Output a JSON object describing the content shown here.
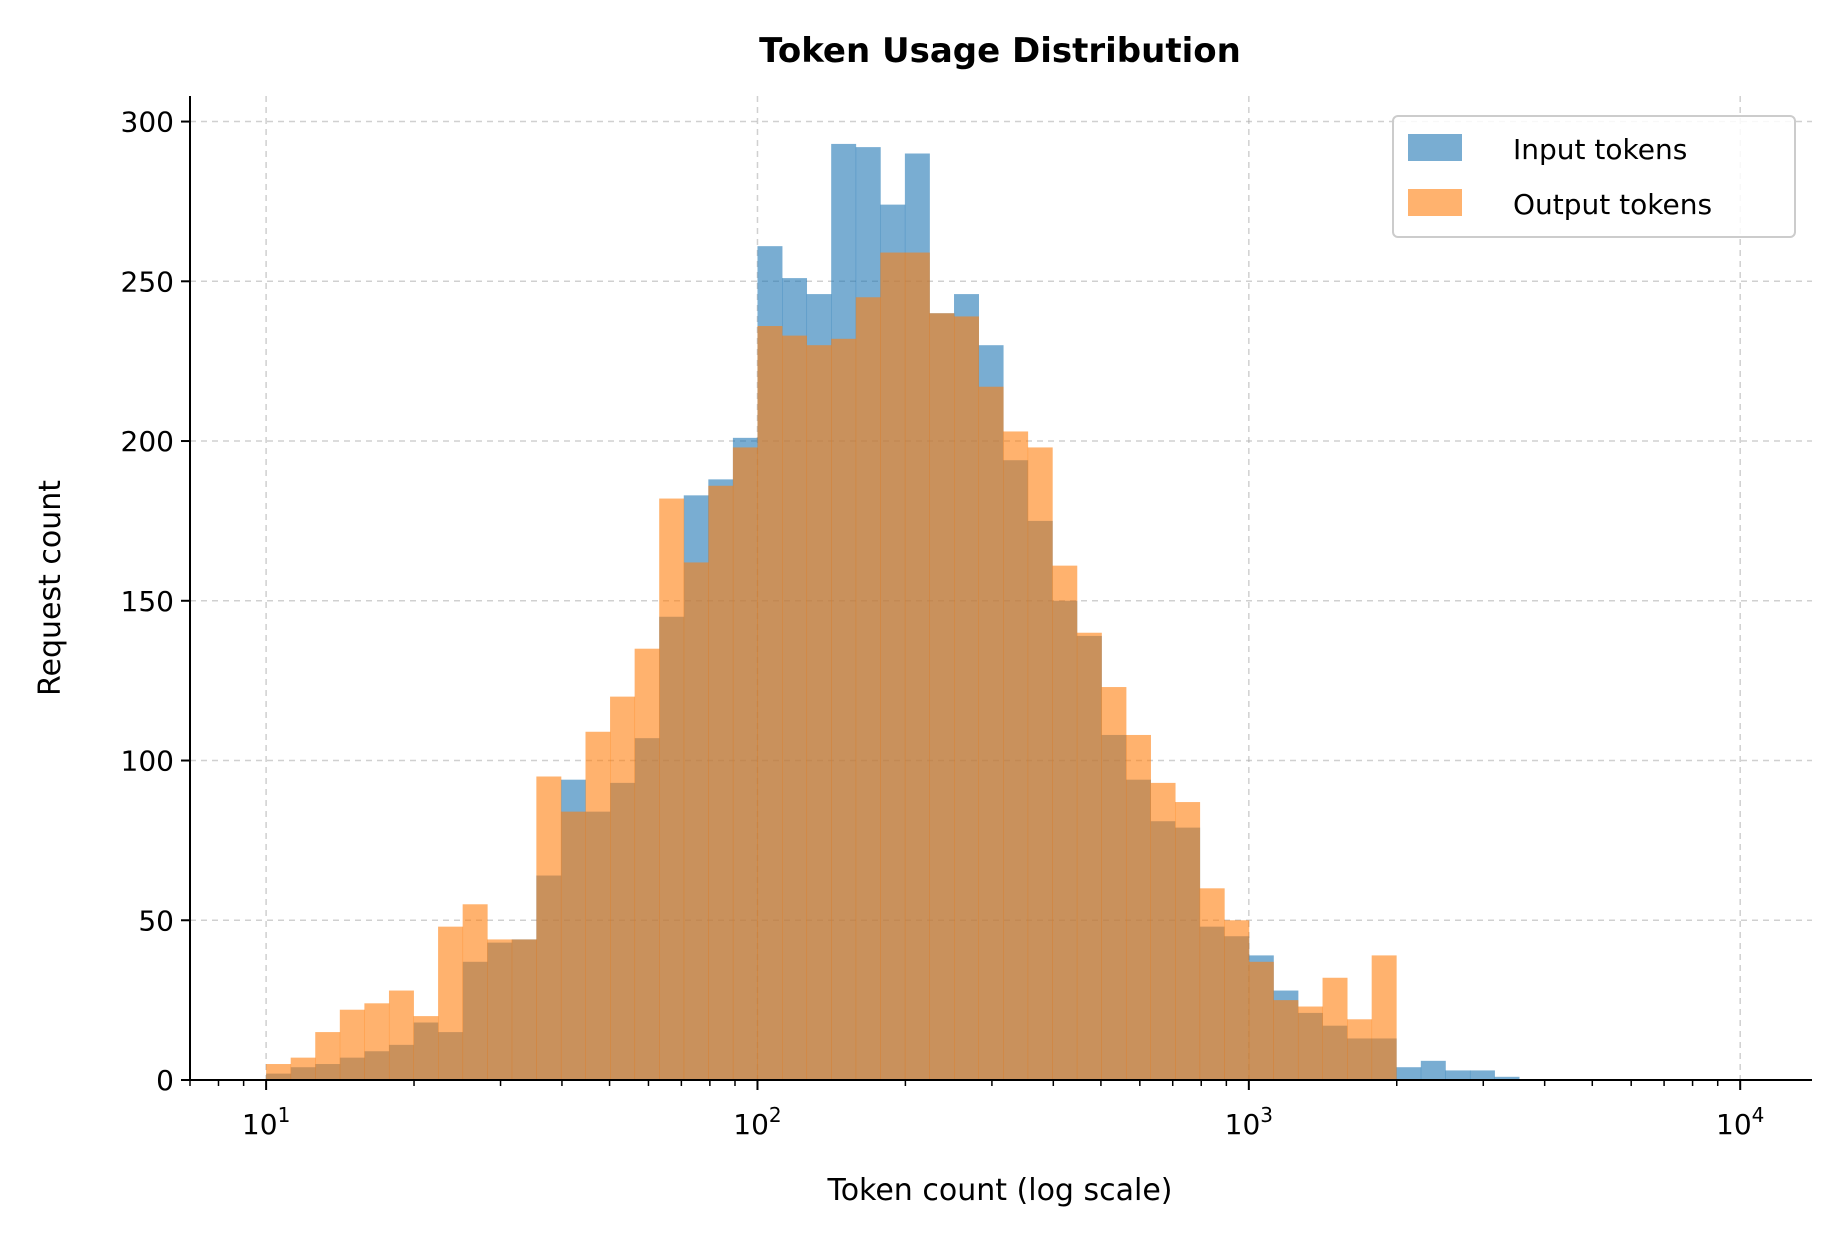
{
  "chart_data": {
    "type": "histogram",
    "title": "Token Usage Distribution",
    "xlabel": "Token count (log scale)",
    "ylabel": "Request count",
    "xscale": "log",
    "xlim": [
      7,
      14000
    ],
    "ylim": [
      0,
      308
    ],
    "x_ticks": [
      {
        "value": 10,
        "base": "10",
        "exp": "1"
      },
      {
        "value": 100,
        "base": "10",
        "exp": "2"
      },
      {
        "value": 1000,
        "base": "10",
        "exp": "3"
      },
      {
        "value": 10000,
        "base": "10",
        "exp": "4"
      }
    ],
    "y_ticks": [
      "0",
      "50",
      "100",
      "150",
      "200",
      "250",
      "300"
    ],
    "grid": true,
    "legend_position": "top-right",
    "bins": {
      "start": 10,
      "end": 10000,
      "count": 60
    },
    "series": [
      {
        "name": "Input tokens",
        "color": "#1f77b4",
        "counts": [
          2,
          4,
          5,
          7,
          9,
          11,
          18,
          15,
          37,
          43,
          44,
          64,
          94,
          84,
          93,
          107,
          145,
          183,
          188,
          201,
          261,
          251,
          246,
          293,
          292,
          274,
          290,
          240,
          246,
          230,
          194,
          175,
          150,
          139,
          108,
          94,
          81,
          79,
          48,
          45,
          39,
          28,
          21,
          17,
          13,
          13,
          4,
          6,
          3,
          3,
          1,
          0,
          0,
          0,
          0,
          0,
          0,
          0,
          0,
          0
        ]
      },
      {
        "name": "Output tokens",
        "color": "#ff7f0e",
        "counts": [
          5,
          7,
          15,
          22,
          24,
          28,
          20,
          48,
          55,
          44,
          44,
          95,
          84,
          109,
          120,
          135,
          182,
          162,
          186,
          198,
          236,
          233,
          230,
          232,
          245,
          259,
          259,
          240,
          239,
          217,
          203,
          198,
          161,
          140,
          123,
          108,
          93,
          87,
          60,
          50,
          37,
          25,
          23,
          32,
          19,
          39,
          0,
          0,
          0,
          0,
          0,
          0,
          0,
          0,
          0,
          0,
          0,
          0,
          0,
          0
        ]
      }
    ]
  }
}
